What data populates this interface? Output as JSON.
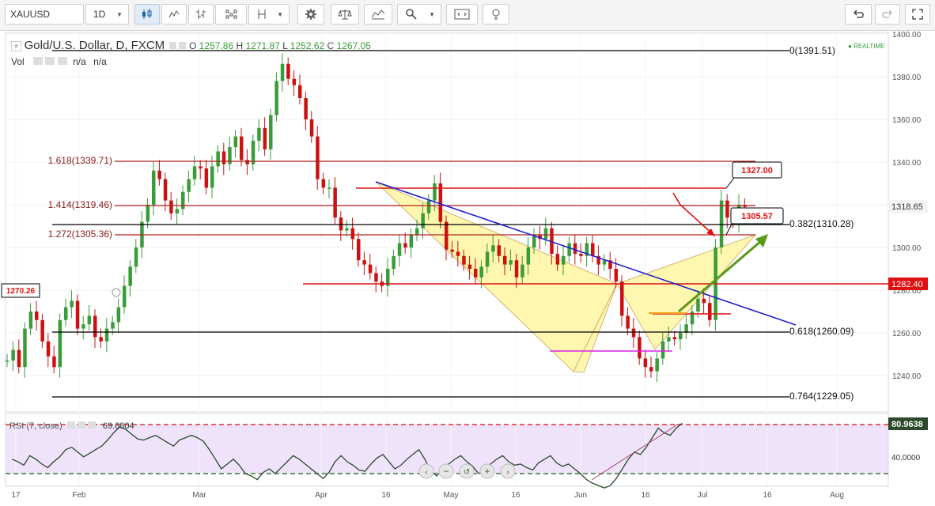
{
  "toolbar": {
    "symbol": "XAUUSD",
    "interval": "1D",
    "buttons": [
      "chart-type-candles",
      "chart-type-bars",
      "chart-type-ohlc",
      "chart-type-heikin",
      "chart-type-line",
      "compare",
      "settings",
      "indicators",
      "studies",
      "search",
      "replay",
      "alert"
    ]
  },
  "chart": {
    "title": "Gold/U.S. Dollar, D, FXCM",
    "ohlc": {
      "o_label": "O",
      "o": "1257.86",
      "h_label": "H",
      "h": "1271.87",
      "l_label": "L",
      "l": "1252.62",
      "c_label": "C",
      "c": "1267.05"
    },
    "vol_label": "Vol",
    "vol_values": [
      "n/a",
      "n/a"
    ],
    "realtime": "REALTIME",
    "price_ticks": [
      "1400.00",
      "1380.00",
      "1360.00",
      "1340.00",
      "1320.00",
      "1300.00",
      "1280.00",
      "1260.00",
      "1240.00"
    ],
    "date_ticks": [
      "17",
      "Feb",
      "Mar",
      "Apr",
      "16",
      "May",
      "16",
      "Jun",
      "16",
      "Jul",
      "16",
      "Aug"
    ],
    "last_price": "1318.65",
    "price_tag_1282": "1282.40",
    "left_tag": "1270.26",
    "callout_1327": "1327.00",
    "callout_1305": "1305.57",
    "fib_left": [
      "1.618(1339.71)",
      "1.414(1319.46)",
      "1.272(1305.36)"
    ],
    "fib_right": [
      "0(1391.51)",
      "0.382(1310.28)",
      "0.618(1260.09)",
      "0.764(1229.05)"
    ]
  },
  "rsi": {
    "label": "RSI (7, close)",
    "value": "69.6804",
    "ticks": [
      "80.9638",
      "40.0000"
    ]
  },
  "colors": {
    "up": "#3a9b3a",
    "down": "#cc1111",
    "pattern": "#fff7b0",
    "trend": "#1f1fcc",
    "accent": "#dd1111"
  }
}
